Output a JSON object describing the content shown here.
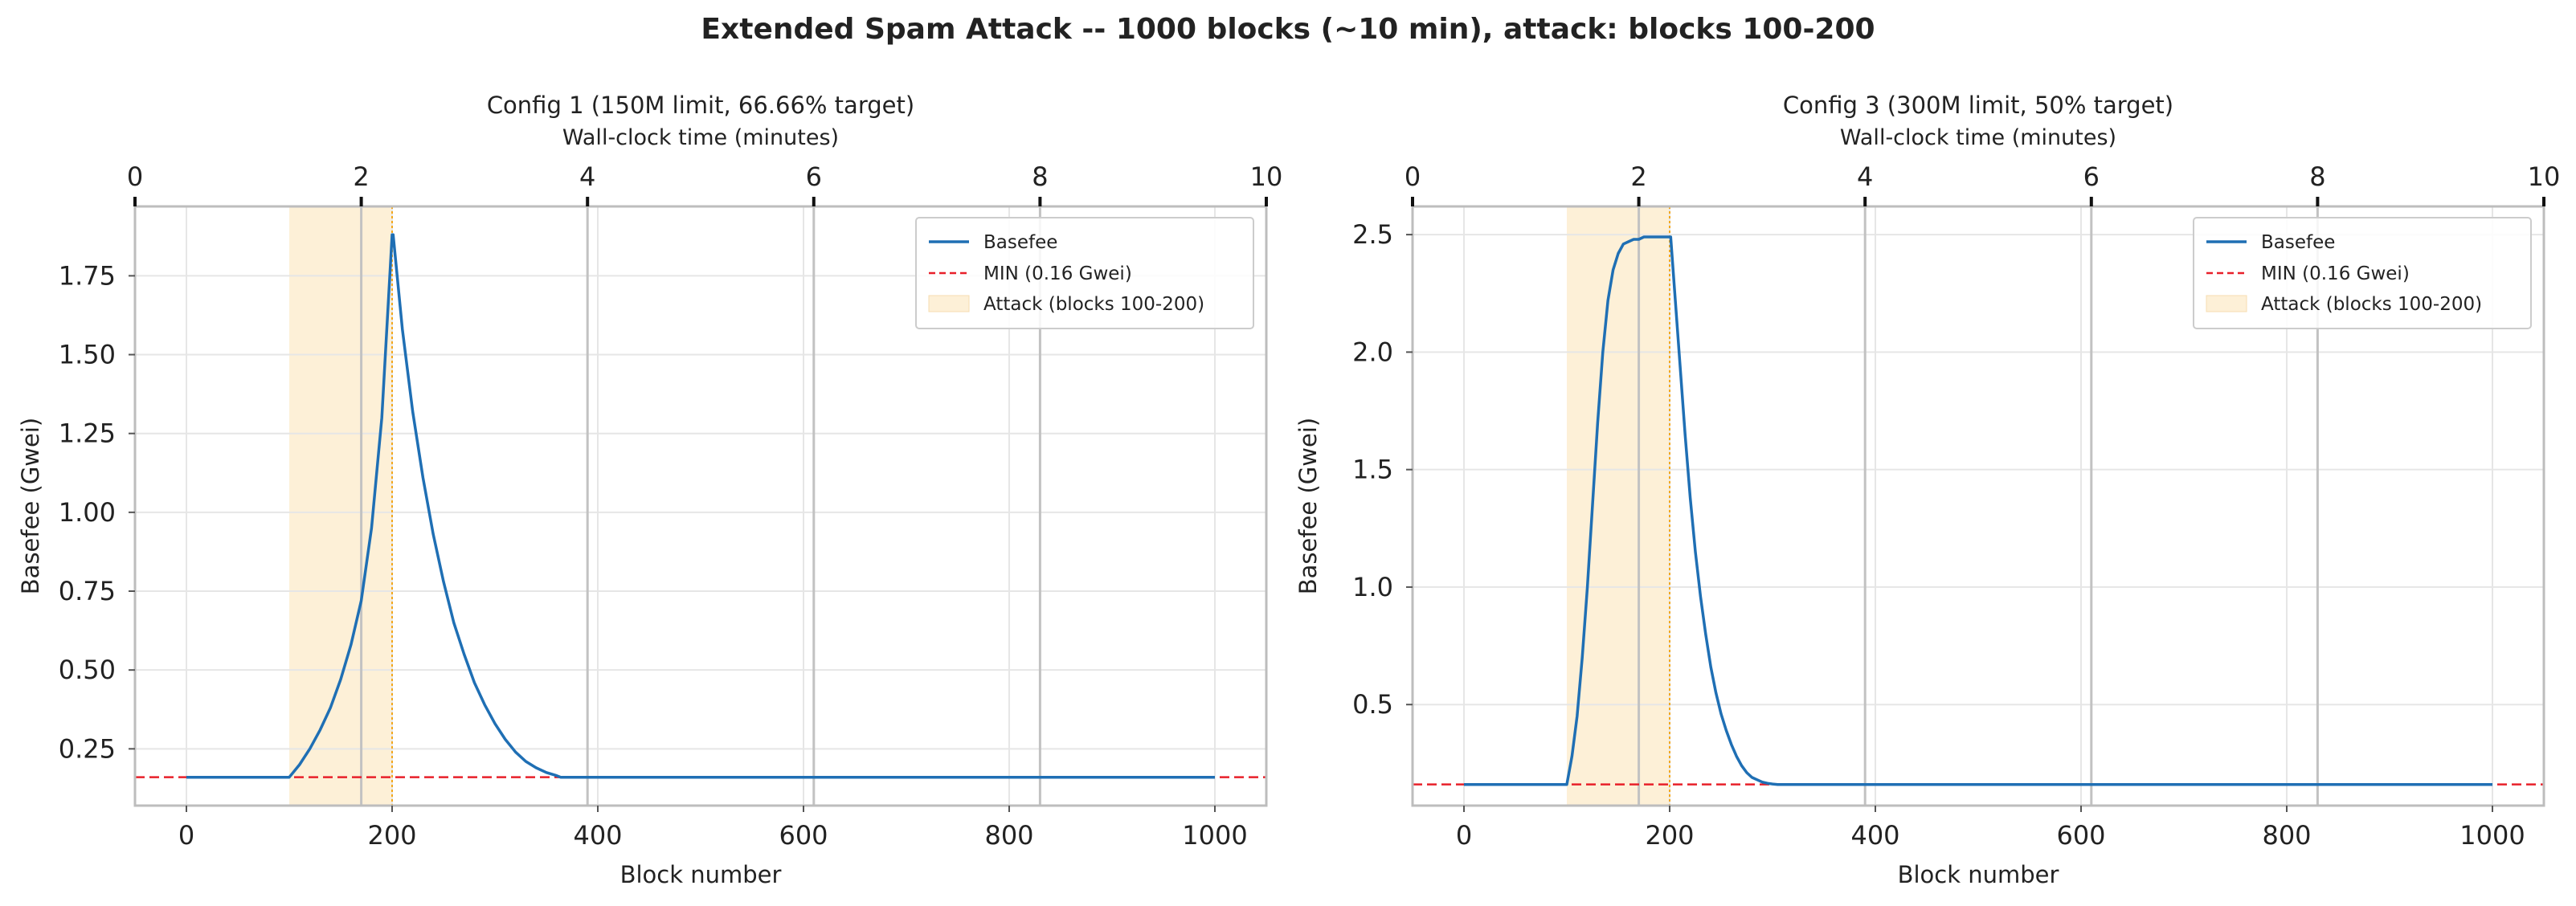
{
  "figure": {
    "title": "Extended Spam Attack -- 1000 blocks (~10 min), attack: blocks 100-200"
  },
  "colors": {
    "series": "#1f6fb4",
    "min_line": "#e8202a",
    "attack_fill": "#fdf0d7",
    "attack_end": "#f2a71c",
    "grid": "#e6e6e6",
    "minute_lines": "#c2c2c2",
    "frame": "#bdbdbd"
  },
  "chart_data": [
    {
      "type": "line",
      "title": "Config 1 (150M limit, 66.66% target)",
      "xlabel": "Block number",
      "ylabel": "Basefee (Gwei)",
      "top_xlabel": "Wall-clock time (minutes)",
      "xlim": [
        -50,
        1050
      ],
      "ylim": [
        0.07,
        1.97
      ],
      "xticks": [
        0,
        200,
        400,
        600,
        800,
        1000
      ],
      "xtick_labels": [
        "0",
        "200",
        "400",
        "600",
        "800",
        "1000"
      ],
      "yticks": [
        0.25,
        0.5,
        0.75,
        1.0,
        1.25,
        1.5,
        1.75
      ],
      "ytick_labels": [
        "0.25",
        "0.50",
        "0.75",
        "1.00",
        "1.25",
        "1.50",
        "1.75"
      ],
      "top_xticks": [
        0,
        2,
        4,
        6,
        8,
        10
      ],
      "top_xlim": [
        0,
        10
      ],
      "minute_grid": [
        2,
        4,
        6,
        8
      ],
      "min_value": 0.16,
      "attack_range": [
        100,
        200
      ],
      "legend": [
        "Basefee",
        "MIN (0.16 Gwei)",
        "Attack (blocks 100-200)"
      ],
      "legend_position": "upper right",
      "series": [
        {
          "name": "Basefee",
          "x": [
            0,
            100,
            110,
            120,
            130,
            140,
            150,
            160,
            170,
            180,
            190,
            200,
            201,
            210,
            220,
            230,
            240,
            250,
            260,
            270,
            280,
            290,
            300,
            310,
            320,
            330,
            340,
            350,
            360,
            364,
            1000
          ],
          "y": [
            0.16,
            0.16,
            0.2,
            0.25,
            0.31,
            0.38,
            0.47,
            0.58,
            0.72,
            0.95,
            1.3,
            1.88,
            1.88,
            1.58,
            1.32,
            1.11,
            0.93,
            0.78,
            0.65,
            0.55,
            0.46,
            0.39,
            0.33,
            0.28,
            0.24,
            0.21,
            0.19,
            0.175,
            0.165,
            0.16,
            0.16
          ]
        }
      ]
    },
    {
      "type": "line",
      "title": "Config 3 (300M limit, 50% target)",
      "xlabel": "Block number",
      "ylabel": "Basefee (Gwei)",
      "top_xlabel": "Wall-clock time (minutes)",
      "xlim": [
        -50,
        1050
      ],
      "ylim": [
        0.07,
        2.62
      ],
      "xticks": [
        0,
        200,
        400,
        600,
        800,
        1000
      ],
      "xtick_labels": [
        "0",
        "200",
        "400",
        "600",
        "800",
        "1000"
      ],
      "yticks": [
        0.5,
        1.0,
        1.5,
        2.0,
        2.5
      ],
      "ytick_labels": [
        "0.5",
        "1.0",
        "1.5",
        "2.0",
        "2.5"
      ],
      "top_xticks": [
        0,
        2,
        4,
        6,
        8,
        10
      ],
      "top_xlim": [
        0,
        10
      ],
      "minute_grid": [
        2,
        4,
        6,
        8
      ],
      "min_value": 0.16,
      "attack_range": [
        100,
        200
      ],
      "legend": [
        "Basefee",
        "MIN (0.16 Gwei)",
        "Attack (blocks 100-200)"
      ],
      "legend_position": "upper right",
      "series": [
        {
          "name": "Basefee",
          "x": [
            0,
            100,
            105,
            110,
            115,
            120,
            125,
            130,
            135,
            140,
            145,
            150,
            155,
            160,
            165,
            170,
            175,
            190,
            200,
            201,
            205,
            210,
            215,
            220,
            225,
            230,
            235,
            240,
            245,
            250,
            255,
            260,
            265,
            270,
            275,
            280,
            285,
            290,
            295,
            300,
            305,
            1000
          ],
          "y": [
            0.16,
            0.16,
            0.28,
            0.45,
            0.7,
            1.0,
            1.35,
            1.7,
            2.0,
            2.22,
            2.35,
            2.42,
            2.46,
            2.47,
            2.48,
            2.48,
            2.49,
            2.49,
            2.49,
            2.49,
            2.25,
            1.95,
            1.65,
            1.38,
            1.15,
            0.96,
            0.8,
            0.66,
            0.55,
            0.46,
            0.39,
            0.33,
            0.28,
            0.24,
            0.21,
            0.19,
            0.18,
            0.17,
            0.165,
            0.162,
            0.16,
            0.16
          ]
        }
      ]
    }
  ]
}
